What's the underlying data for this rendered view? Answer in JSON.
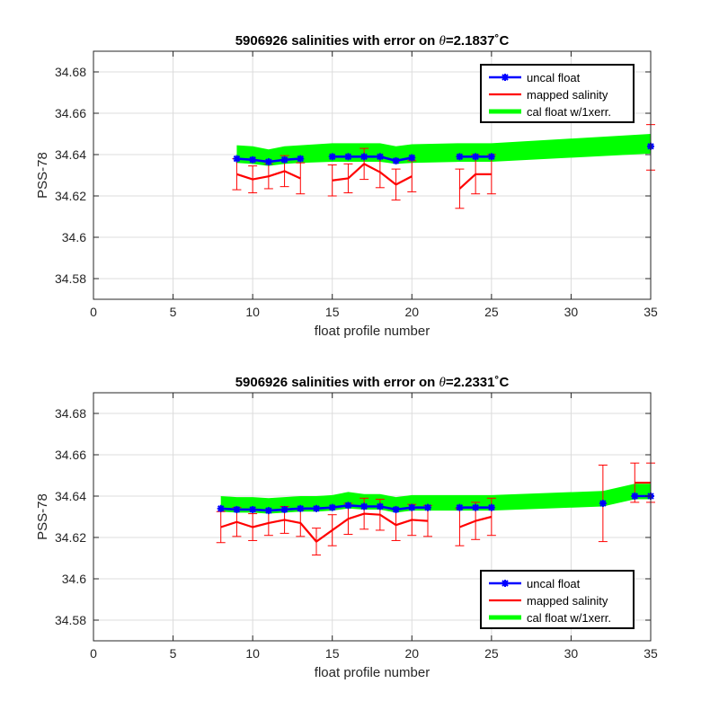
{
  "chart_data": [
    {
      "type": "line",
      "title": "5906926 salinities with error on θ=2.1837˚C",
      "title_prefix": "5906926 salinities with error on ",
      "title_theta": "θ",
      "title_value": "=2.1837",
      "title_unit": "˚C",
      "xlabel": "float profile number",
      "ylabel": "PSS-78",
      "xlim": [
        0,
        35
      ],
      "ylim": [
        34.57,
        34.69
      ],
      "xticks": [
        0,
        5,
        10,
        15,
        20,
        25,
        30,
        35
      ],
      "xtick_labels": [
        "0",
        "5",
        "10",
        "15",
        "20",
        "25",
        "30",
        "35"
      ],
      "yticks": [
        34.58,
        34.6,
        34.62,
        34.64,
        34.66,
        34.68
      ],
      "ytick_labels": [
        "34.58",
        "34.6",
        "34.62",
        "34.64",
        "34.66",
        "34.68"
      ],
      "grid": true,
      "legend_position": "top-right",
      "legend": [
        "uncal float",
        "mapped salinity",
        "cal float w/1xerr."
      ],
      "series": [
        {
          "name": "uncal float",
          "color": "#0000ff",
          "marker": "asterisk",
          "segments": [
            {
              "x": [
                9,
                10,
                11,
                12,
                13
              ],
              "y": [
                34.638,
                34.6375,
                34.6365,
                34.6375,
                34.638
              ]
            },
            {
              "x": [
                15,
                16,
                17,
                18,
                19,
                20
              ],
              "y": [
                34.639,
                34.639,
                34.639,
                34.639,
                34.637,
                34.6385
              ]
            },
            {
              "x": [
                23,
                24,
                25
              ],
              "y": [
                34.639,
                34.639,
                34.639
              ]
            },
            {
              "x": [
                35
              ],
              "y": [
                34.644
              ]
            }
          ]
        },
        {
          "name": "mapped salinity",
          "color": "#ff0000",
          "segments": [
            {
              "x": [
                9,
                10,
                11,
                12,
                13
              ],
              "y": [
                34.6305,
                34.628,
                34.6295,
                34.632,
                34.6285
              ],
              "err": [
                0.0075,
                0.0065,
                0.006,
                0.0075,
                0.0075
              ]
            },
            {
              "x": [
                15,
                16,
                17,
                18,
                19,
                20
              ],
              "y": [
                34.6275,
                34.6285,
                34.6355,
                34.6315,
                34.6255,
                34.6295
              ],
              "err": [
                0.0075,
                0.007,
                0.0075,
                0.0075,
                0.0075,
                0.0075
              ]
            },
            {
              "x": [
                23,
                24,
                25
              ],
              "y": [
                34.6235,
                34.6305,
                34.6305
              ],
              "err": [
                0.0095,
                0.0095,
                0.0095
              ]
            },
            {
              "x": [
                35
              ],
              "y": [
                34.6435
              ],
              "err": [
                0.011
              ]
            }
          ]
        },
        {
          "name": "cal float w/1xerr.",
          "color": "#00ff00",
          "band": {
            "x": [
              9,
              10,
              11,
              12,
              13,
              15,
              16,
              17,
              18,
              19,
              20,
              23,
              24,
              25,
              35
            ],
            "upper": [
              34.6445,
              34.644,
              34.6425,
              34.644,
              34.6445,
              34.6455,
              34.6455,
              34.6455,
              34.6455,
              34.644,
              34.645,
              34.6455,
              34.6455,
              34.6455,
              34.65
            ],
            "lower": [
              34.636,
              34.6355,
              34.6345,
              34.6355,
              34.636,
              34.6365,
              34.6365,
              34.6365,
              34.6365,
              34.6355,
              34.636,
              34.6365,
              34.6365,
              34.6365,
              34.6405
            ]
          }
        }
      ]
    },
    {
      "type": "line",
      "title": "5906926 salinities with error on θ=2.2331˚C",
      "title_prefix": "5906926 salinities with error on ",
      "title_theta": "θ",
      "title_value": "=2.2331",
      "title_unit": "˚C",
      "xlabel": "float profile number",
      "ylabel": "PSS-78",
      "xlim": [
        0,
        35
      ],
      "ylim": [
        34.57,
        34.69
      ],
      "xticks": [
        0,
        5,
        10,
        15,
        20,
        25,
        30,
        35
      ],
      "xtick_labels": [
        "0",
        "5",
        "10",
        "15",
        "20",
        "25",
        "30",
        "35"
      ],
      "yticks": [
        34.58,
        34.6,
        34.62,
        34.64,
        34.66,
        34.68
      ],
      "ytick_labels": [
        "34.58",
        "34.6",
        "34.62",
        "34.64",
        "34.66",
        "34.68"
      ],
      "grid": true,
      "legend_position": "bottom-right",
      "legend": [
        "uncal float",
        "mapped salinity",
        "cal float w/1xerr."
      ],
      "series": [
        {
          "name": "uncal float",
          "color": "#0000ff",
          "marker": "asterisk",
          "segments": [
            {
              "x": [
                8,
                9,
                10,
                11,
                12,
                13,
                14,
                15,
                16,
                17,
                18,
                19,
                20,
                21
              ],
              "y": [
                34.634,
                34.6335,
                34.6335,
                34.633,
                34.6335,
                34.634,
                34.634,
                34.6345,
                34.6355,
                34.635,
                34.635,
                34.6335,
                34.6345,
                34.6345
              ]
            },
            {
              "x": [
                23,
                24,
                25
              ],
              "y": [
                34.6345,
                34.6345,
                34.6345
              ]
            },
            {
              "x": [
                32
              ],
              "y": [
                34.6365
              ]
            },
            {
              "x": [
                34,
                35
              ],
              "y": [
                34.64,
                34.64
              ]
            }
          ]
        },
        {
          "name": "mapped salinity",
          "color": "#ff0000",
          "segments": [
            {
              "x": [
                8,
                9,
                10,
                11,
                12,
                13,
                14,
                15,
                16,
                17,
                18,
                19,
                20,
                21
              ],
              "y": [
                34.625,
                34.6275,
                34.625,
                34.627,
                34.6285,
                34.627,
                34.618,
                34.6235,
                34.629,
                34.6315,
                34.631,
                34.626,
                34.6285,
                34.628
              ],
              "err": [
                0.0075,
                0.007,
                0.0065,
                0.006,
                0.0065,
                0.0065,
                0.0065,
                0.0075,
                0.0075,
                0.0075,
                0.0075,
                0.0075,
                0.0075,
                0.0075
              ]
            },
            {
              "x": [
                23,
                24,
                25
              ],
              "y": [
                34.625,
                34.628,
                34.63
              ],
              "err": [
                0.009,
                0.009,
                0.009
              ]
            },
            {
              "x": [
                32
              ],
              "y": [
                34.6365
              ],
              "err": [
                0.0185
              ]
            },
            {
              "x": [
                34,
                35
              ],
              "y": [
                34.6465,
                34.6465
              ],
              "err": [
                0.0095,
                0.0095
              ]
            }
          ]
        },
        {
          "name": "cal float w/1xerr.",
          "color": "#00ff00",
          "band": {
            "x": [
              8,
              9,
              10,
              11,
              12,
              13,
              14,
              15,
              16,
              17,
              18,
              19,
              20,
              21,
              23,
              24,
              25,
              32,
              34,
              35
            ],
            "upper": [
              34.64,
              34.6395,
              34.6395,
              34.639,
              34.6395,
              34.64,
              34.64,
              34.6405,
              34.642,
              34.641,
              34.641,
              34.6395,
              34.6405,
              34.6405,
              34.6405,
              34.6405,
              34.6405,
              34.6425,
              34.646,
              34.646
            ],
            "lower": [
              34.6325,
              34.632,
              34.632,
              34.6315,
              34.632,
              34.6325,
              34.6325,
              34.633,
              34.634,
              34.6335,
              34.6335,
              34.632,
              34.633,
              34.633,
              34.633,
              34.633,
              34.633,
              34.635,
              34.6385,
              34.6385
            ]
          }
        }
      ]
    }
  ]
}
